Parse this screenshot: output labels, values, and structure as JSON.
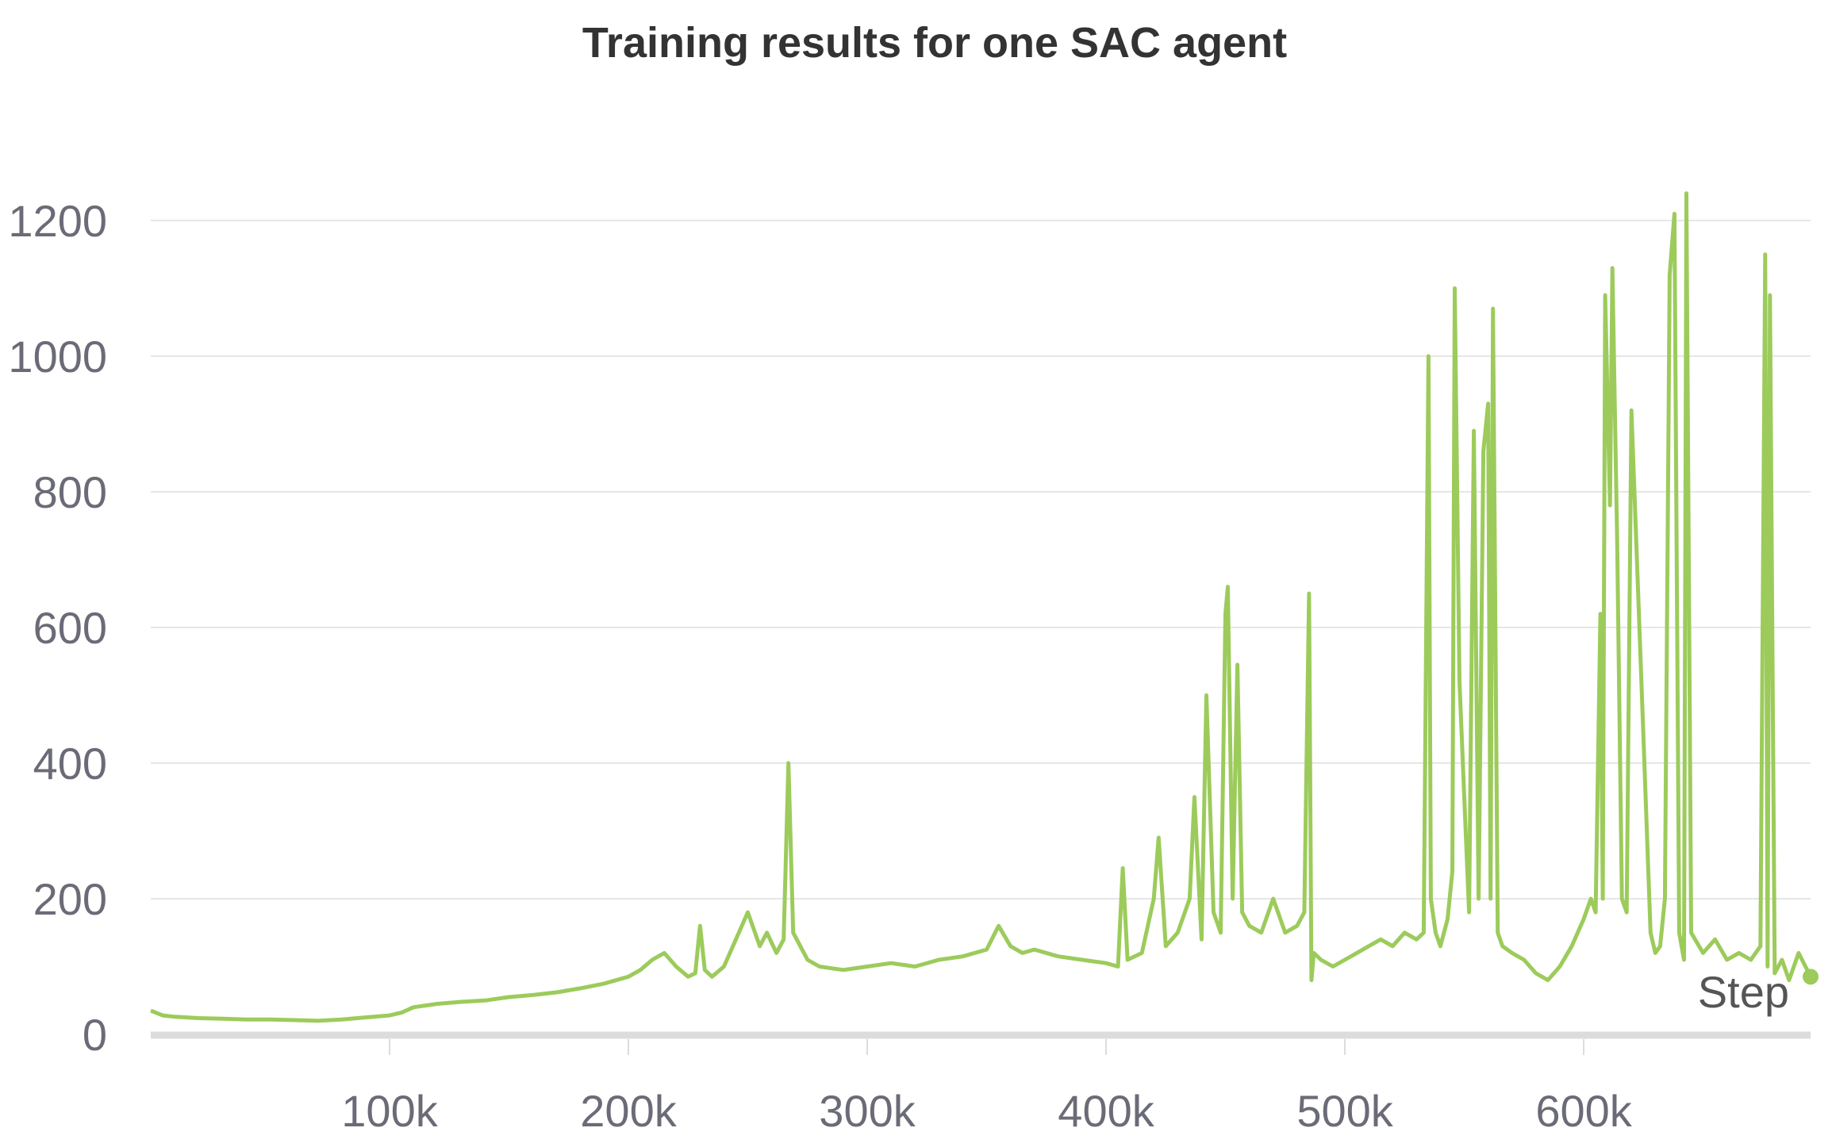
{
  "chart_data": {
    "type": "line",
    "title": "Training results for one SAC agent",
    "xlabel": "Step",
    "ylabel": "",
    "xlim": [
      0,
      695000
    ],
    "ylim": [
      0,
      1300
    ],
    "yticks": [
      0,
      200,
      400,
      600,
      800,
      1000,
      1200
    ],
    "ytick_labels": [
      "0",
      "200",
      "400",
      "600",
      "800",
      "1000",
      "1200"
    ],
    "xticks": [
      100000,
      200000,
      300000,
      400000,
      500000,
      600000
    ],
    "xtick_labels": [
      "100k",
      "200k",
      "300k",
      "400k",
      "500k",
      "600k"
    ],
    "grid": true,
    "color": "#9ccb5b",
    "series": [
      {
        "x": [
          0,
          5000,
          10000,
          20000,
          30000,
          40000,
          50000,
          60000,
          70000,
          80000,
          90000,
          100000,
          105000,
          110000,
          120000,
          130000,
          140000,
          150000,
          160000,
          170000,
          180000,
          190000,
          200000,
          205000,
          210000,
          215000,
          220000,
          225000,
          228000,
          230000,
          232000,
          235000,
          240000,
          245000,
          250000,
          255000,
          258000,
          262000,
          265000,
          267000,
          269000,
          272000,
          275000,
          280000,
          290000,
          300000,
          310000,
          320000,
          330000,
          340000,
          350000,
          355000,
          360000,
          365000,
          370000,
          380000,
          390000,
          400000,
          405000,
          407000,
          409000,
          415000,
          420000,
          422000,
          425000,
          430000,
          435000,
          437000,
          440000,
          442000,
          445000,
          448000,
          450000,
          451000,
          453000,
          455000,
          457000,
          460000,
          465000,
          470000,
          475000,
          480000,
          483000,
          485000,
          486000,
          487000,
          490000,
          495000,
          500000,
          505000,
          510000,
          515000,
          520000,
          525000,
          530000,
          533000,
          535000,
          536000,
          538000,
          540000,
          543000,
          545000,
          546000,
          548000,
          550000,
          552000,
          554000,
          556000,
          558000,
          560000,
          561000,
          562000,
          564000,
          566000,
          570000,
          575000,
          580000,
          585000,
          590000,
          595000,
          600000,
          603000,
          605000,
          607000,
          608000,
          609000,
          611000,
          612000,
          614000,
          616000,
          618000,
          620000,
          625000,
          628000,
          630000,
          632000,
          634000,
          636000,
          638000,
          640000,
          642000,
          643000,
          645000,
          650000,
          655000,
          660000,
          665000,
          670000,
          674000,
          676000,
          677000,
          678000,
          680000,
          683000,
          686000,
          690000,
          695000
        ],
        "y": [
          35,
          28,
          26,
          24,
          23,
          22,
          22,
          21,
          20,
          22,
          25,
          28,
          32,
          40,
          45,
          48,
          50,
          55,
          58,
          62,
          68,
          75,
          85,
          95,
          110,
          120,
          100,
          85,
          90,
          160,
          95,
          85,
          100,
          140,
          180,
          130,
          150,
          120,
          140,
          400,
          150,
          130,
          110,
          100,
          95,
          100,
          105,
          100,
          110,
          115,
          125,
          160,
          130,
          120,
          125,
          115,
          110,
          105,
          100,
          245,
          110,
          120,
          200,
          290,
          130,
          150,
          200,
          350,
          140,
          500,
          180,
          150,
          620,
          660,
          200,
          545,
          180,
          160,
          150,
          200,
          150,
          160,
          180,
          650,
          80,
          120,
          110,
          100,
          110,
          120,
          130,
          140,
          130,
          150,
          140,
          150,
          1000,
          200,
          150,
          130,
          170,
          240,
          1100,
          520,
          350,
          180,
          890,
          200,
          860,
          930,
          200,
          1070,
          150,
          130,
          120,
          110,
          90,
          80,
          100,
          130,
          170,
          200,
          180,
          620,
          200,
          1090,
          780,
          1130,
          730,
          200,
          180,
          920,
          440,
          150,
          120,
          130,
          200,
          1120,
          1210,
          150,
          110,
          1240,
          150,
          120,
          140,
          110,
          120,
          110,
          130,
          1150,
          100,
          1090,
          90,
          110,
          80,
          120,
          85
        ]
      }
    ]
  }
}
